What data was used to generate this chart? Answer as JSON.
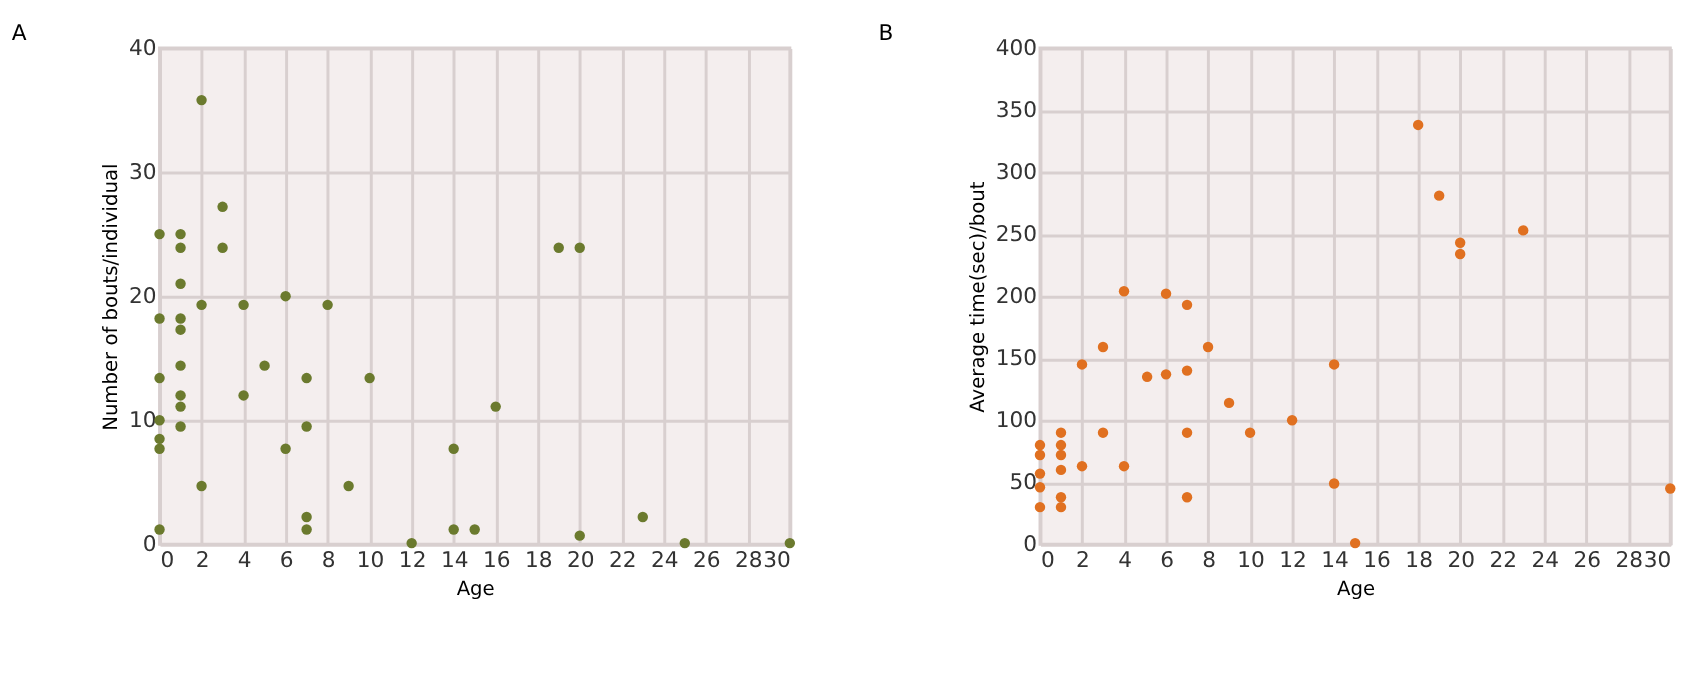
{
  "chart_data": [
    {
      "type": "scatter",
      "title": "A",
      "xlabel": "Age",
      "ylabel": "Number of bouts/individual",
      "grid": true,
      "marker": "circle",
      "x": [
        0,
        0,
        0,
        0,
        0,
        0,
        0,
        1,
        1,
        1,
        1,
        1,
        1,
        1,
        1,
        1,
        2,
        2,
        2,
        3,
        3,
        4,
        4,
        5,
        6,
        6,
        7,
        7,
        7,
        7,
        8,
        9,
        10,
        12,
        14,
        14,
        15,
        16,
        19,
        20,
        20,
        23,
        25,
        30
      ],
      "series": [
        {
          "color": "#6b7a2e",
          "values": [
            25,
            18.2,
            13.4,
            10,
            8.5,
            7.7,
            1.2,
            25,
            23.9,
            21,
            18.2,
            17.3,
            14.4,
            12,
            11.1,
            9.5,
            35.8,
            19.3,
            4.7,
            27.2,
            23.9,
            19.3,
            12,
            14.4,
            20,
            7.7,
            13.4,
            9.5,
            2.2,
            1.2,
            19.3,
            4.7,
            13.4,
            0.1,
            7.7,
            1.2,
            1.2,
            11.1,
            23.9,
            23.9,
            0.7,
            2.2,
            0.1,
            0.1
          ]
        }
      ],
      "xlim": [
        0,
        30
      ],
      "xticks": [
        0,
        2,
        4,
        6,
        8,
        10,
        12,
        14,
        16,
        18,
        20,
        22,
        24,
        26,
        28,
        30
      ],
      "ylim": [
        0,
        40
      ],
      "yticks": [
        0,
        10,
        20,
        30,
        40
      ]
    },
    {
      "type": "scatter",
      "title": "B",
      "xlabel": "Age",
      "ylabel": "Average time(sec)/bout",
      "grid": true,
      "marker": "circle",
      "x": [
        0,
        0,
        0,
        0,
        0,
        1,
        1,
        1,
        1,
        1,
        1,
        2,
        2,
        3,
        3,
        4,
        4,
        5.1,
        6,
        6,
        7,
        7,
        7,
        7,
        8,
        9,
        10,
        12,
        14,
        14,
        15,
        18,
        19,
        20,
        20,
        23,
        30
      ],
      "series": [
        {
          "color": "#e07020",
          "values": [
            80,
            72,
            57,
            46,
            30,
            90,
            80,
            72,
            60,
            38,
            30,
            145,
            63,
            159,
            90,
            204,
            63,
            135,
            202,
            137,
            193,
            140,
            90,
            38,
            159,
            114,
            90,
            100,
            145,
            49,
            1,
            338,
            281,
            243,
            234,
            253,
            45
          ]
        }
      ],
      "xlim": [
        0,
        30
      ],
      "xticks": [
        0,
        2,
        4,
        6,
        8,
        10,
        12,
        14,
        16,
        18,
        20,
        22,
        24,
        26,
        28,
        30
      ],
      "ylim": [
        0,
        400
      ],
      "yticks": [
        0,
        50,
        100,
        150,
        200,
        250,
        300,
        350,
        400
      ]
    }
  ]
}
